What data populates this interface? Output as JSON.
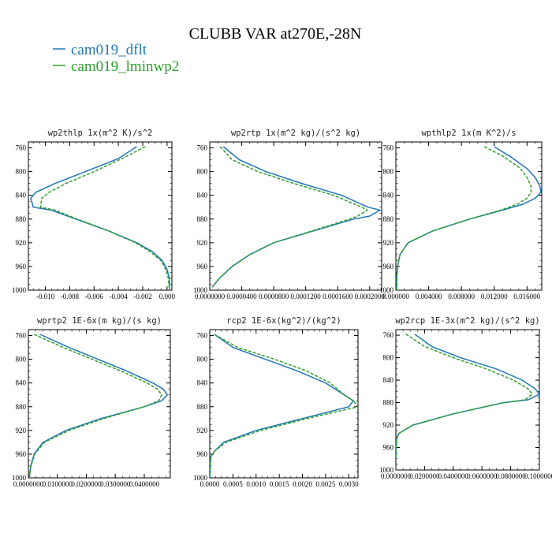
{
  "figure": {
    "title": "CLUBB VAR at270E,-28N",
    "legend": [
      {
        "label": "cam019_dflt",
        "color": "#1f77b4"
      },
      {
        "label": "cam019_lminwp2",
        "color": "#2ca02c"
      }
    ]
  },
  "chart_data": [
    {
      "type": "line",
      "title": "wp2thlp  1x(m^2 K)/s^2",
      "xlim": [
        -0.0114,
        0.0004
      ],
      "xticks": [
        -0.01,
        -0.008,
        -0.006,
        -0.004,
        -0.002,
        0.0
      ],
      "xtick_labels": [
        "-0.010",
        "-0.008",
        "-0.006",
        "-0.004",
        "-0.002",
        "0.000"
      ],
      "ylim": [
        750,
        1000
      ],
      "yticks": [
        760,
        800,
        840,
        880,
        920,
        960,
        1000
      ],
      "y": [
        758,
        778,
        800,
        820,
        835,
        845,
        860,
        865,
        880,
        900,
        920,
        935,
        950,
        965,
        980,
        1000
      ],
      "series": [
        {
          "name": "cam019_dflt",
          "color": "#1f77b4",
          "dash": "",
          "values": [
            -0.0025,
            -0.004,
            -0.0067,
            -0.0092,
            -0.0108,
            -0.0112,
            -0.011,
            -0.0095,
            -0.0075,
            -0.0048,
            -0.0025,
            -0.0012,
            -0.0004,
            0.0,
            0.0002,
            0.0002
          ]
        },
        {
          "name": "cam019_lminwp2",
          "color": "#2ca02c",
          "dash": "4,2",
          "values": [
            -0.0018,
            -0.0037,
            -0.006,
            -0.0083,
            -0.0097,
            -0.0103,
            -0.0104,
            -0.0092,
            -0.0074,
            -0.0048,
            -0.0026,
            -0.0014,
            -0.0005,
            -0.0001,
            0.0001,
            0.0002
          ]
        }
      ]
    },
    {
      "type": "line",
      "title": "wp2rtp  1x(m^2 kg)/(s^2 kg)",
      "xlim": [
        0,
        0.000215
      ],
      "xticks": [
        0,
        4e-05,
        8e-05,
        0.00012,
        0.00016,
        0.0002
      ],
      "xtick_labels": [
        "0.0000000",
        "0.0000400",
        "0.0000800",
        "0.0001200",
        "0.0001600",
        "0.0002000"
      ],
      "ylim": [
        750,
        1000
      ],
      "yticks": [
        760,
        800,
        840,
        880,
        920,
        960,
        1000
      ],
      "y": [
        758,
        780,
        800,
        820,
        840,
        860,
        865,
        875,
        880,
        900,
        920,
        940,
        960,
        980,
        995
      ],
      "series": [
        {
          "name": "cam019_dflt",
          "color": "#1f77b4",
          "dash": "",
          "values": [
            1.7e-05,
            3.7e-05,
            7e-05,
            0.000115,
            0.000165,
            0.000198,
            0.000213,
            0.0002,
            0.00018,
            0.00013,
            8e-05,
            5e-05,
            2.8e-05,
            1.2e-05,
            3e-06
          ]
        },
        {
          "name": "cam019_lminwp2",
          "color": "#2ca02c",
          "dash": "4,2",
          "values": [
            1.3e-05,
            2.8e-05,
            6e-05,
            0.000105,
            0.000155,
            0.00019,
            0.000197,
            0.000185,
            0.000175,
            0.000128,
            8e-05,
            5e-05,
            2.8e-05,
            1.2e-05,
            3e-06
          ]
        }
      ]
    },
    {
      "type": "line",
      "title": "wpthlp2  1x(m K^2)/s",
      "xlim": [
        0,
        0.0178
      ],
      "xticks": [
        0,
        0.004,
        0.008,
        0.012,
        0.016
      ],
      "xtick_labels": [
        "0.000000",
        "0.004000",
        "0.008000",
        "0.012000",
        "0.016000"
      ],
      "ylim": [
        750,
        1000
      ],
      "yticks": [
        760,
        800,
        840,
        880,
        920,
        960,
        1000
      ],
      "y": [
        758,
        775,
        795,
        810,
        825,
        835,
        845,
        855,
        865,
        880,
        900,
        920,
        940,
        960,
        980,
        1000
      ],
      "series": [
        {
          "name": "cam019_dflt",
          "color": "#1f77b4",
          "dash": "",
          "values": [
            0.012,
            0.014,
            0.016,
            0.017,
            0.0176,
            0.0177,
            0.017,
            0.0155,
            0.013,
            0.009,
            0.0045,
            0.0015,
            0.0005,
            0.0002,
            0.0001,
            0.0001
          ]
        },
        {
          "name": "cam019_lminwp2",
          "color": "#2ca02c",
          "dash": "4,2",
          "values": [
            0.0108,
            0.0132,
            0.0152,
            0.016,
            0.0165,
            0.0165,
            0.016,
            0.0148,
            0.0128,
            0.009,
            0.0045,
            0.0015,
            0.0005,
            0.0002,
            0.0001,
            0.0001
          ]
        }
      ]
    },
    {
      "type": "line",
      "title": "wprtp2  1E-6x(m kg)/(s kg)",
      "xlim": [
        0,
        0.049
      ],
      "xticks": [
        0,
        0.01,
        0.02,
        0.03,
        0.04
      ],
      "xtick_labels": [
        "0.0000000",
        "0.0100000",
        "0.0200000",
        "0.0300000",
        "0.0400000"
      ],
      "ylim": [
        750,
        1000
      ],
      "yticks": [
        760,
        800,
        840,
        880,
        920,
        960,
        1000
      ],
      "y": [
        758,
        780,
        800,
        820,
        840,
        850,
        860,
        870,
        880,
        900,
        920,
        940,
        960,
        980,
        1000
      ],
      "series": [
        {
          "name": "cam019_dflt",
          "color": "#1f77b4",
          "dash": "",
          "values": [
            0.004,
            0.014,
            0.024,
            0.034,
            0.043,
            0.0465,
            0.048,
            0.046,
            0.04,
            0.025,
            0.013,
            0.005,
            0.002,
            0.0008,
            0.0003
          ]
        },
        {
          "name": "cam019_lminwp2",
          "color": "#2ca02c",
          "dash": "4,2",
          "values": [
            0.002,
            0.012,
            0.022,
            0.032,
            0.041,
            0.0445,
            0.046,
            0.045,
            0.04,
            0.026,
            0.014,
            0.0055,
            0.0022,
            0.0009,
            0.0003
          ]
        }
      ]
    },
    {
      "type": "line",
      "title": "rcp2  1E-6x(kg^2)/(kg^2)",
      "xlim": [
        0,
        0.0032
      ],
      "xticks": [
        0,
        0.0005,
        0.001,
        0.0015,
        0.002,
        0.0025,
        0.003
      ],
      "xtick_labels": [
        "0.0000",
        "0.0005",
        "0.0010",
        "0.0015",
        "0.0020",
        "0.0025",
        "0.0030"
      ],
      "ylim": [
        750,
        1000
      ],
      "yticks": [
        760,
        800,
        840,
        880,
        920,
        960,
        1000
      ],
      "y": [
        758,
        780,
        800,
        820,
        840,
        860,
        870,
        880,
        900,
        920,
        940,
        955,
        965,
        980,
        1000
      ],
      "series": [
        {
          "name": "cam019_dflt",
          "color": "#1f77b4",
          "dash": "",
          "values": [
            0.0001,
            0.0005,
            0.0012,
            0.0019,
            0.0025,
            0.0029,
            0.0031,
            0.003,
            0.002,
            0.001,
            0.0003,
            0.0001,
            2e-05,
            1e-05,
            0.0
          ]
        },
        {
          "name": "cam019_lminwp2",
          "color": "#2ca02c",
          "dash": "4,2",
          "values": [
            0.0001,
            0.0006,
            0.0014,
            0.0021,
            0.0026,
            0.0029,
            0.0031,
            0.0032,
            0.0021,
            0.0011,
            0.00035,
            0.0001,
            2e-05,
            1e-05,
            0.0
          ]
        }
      ]
    },
    {
      "type": "line",
      "title": "wp2rcp  1E-3x(m^2 kg)/(s^2 kg)",
      "xlim": [
        0,
        0.1
      ],
      "xticks": [
        0,
        0.02,
        0.04,
        0.06,
        0.08,
        0.1
      ],
      "xtick_labels": [
        "0.0000000",
        "0.0200000",
        "0.0400000",
        "0.0600000",
        "0.0800000",
        "0.1000000"
      ],
      "ylim": [
        750,
        1000
      ],
      "yticks": [
        760,
        800,
        840,
        880,
        920,
        960,
        1000
      ],
      "y": [
        758,
        780,
        800,
        820,
        840,
        855,
        865,
        875,
        880,
        900,
        920,
        935,
        945,
        960,
        980
      ],
      "series": [
        {
          "name": "cam019_dflt",
          "color": "#1f77b4",
          "dash": "",
          "values": [
            0.013,
            0.025,
            0.045,
            0.07,
            0.088,
            0.097,
            0.1,
            0.092,
            0.075,
            0.04,
            0.012,
            0.002,
            0.0005,
            0.0002,
            0.0
          ]
        },
        {
          "name": "cam019_lminwp2",
          "color": "#2ca02c",
          "dash": "4,2",
          "values": [
            0.007,
            0.02,
            0.04,
            0.063,
            0.082,
            0.092,
            0.095,
            0.09,
            0.075,
            0.04,
            0.012,
            0.002,
            0.0005,
            0.0002,
            0.0
          ]
        }
      ]
    }
  ]
}
